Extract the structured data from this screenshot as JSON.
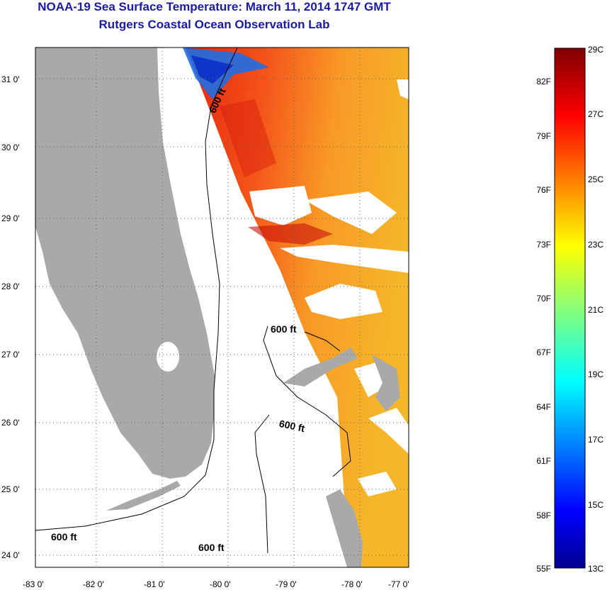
{
  "title": {
    "line1": "NOAA-19 Sea Surface Temperature:  March 11, 2014 1747 GMT",
    "line2": "Rutgers Coastal Ocean Observation Lab"
  },
  "map": {
    "lat_labels": [
      "31 0'",
      "30 0'",
      "29 0'",
      "28 0'",
      "27 0'",
      "26 0'",
      "25 0'",
      "24 0'"
    ],
    "lon_labels": [
      "-83 0'",
      "-82 0'",
      "-81 0'",
      "-80 0'",
      "-79 0'",
      "-78 0'",
      "-77 0'"
    ],
    "contour_labels": [
      "600 ft",
      "600 ft",
      "600 ft",
      "600 ft",
      "600 ft"
    ],
    "colors": {
      "land": "#a9a9a9",
      "frame": "#000000"
    }
  },
  "colorbar": {
    "celsius": [
      "29C",
      "27C",
      "25C",
      "23C",
      "21C",
      "19C",
      "17C",
      "15C",
      "13C"
    ],
    "fahrenheit": [
      "82F",
      "79F",
      "76F",
      "73F",
      "70F",
      "67F",
      "64F",
      "61F",
      "58F",
      "55F"
    ],
    "range_c": [
      13,
      29
    ]
  }
}
